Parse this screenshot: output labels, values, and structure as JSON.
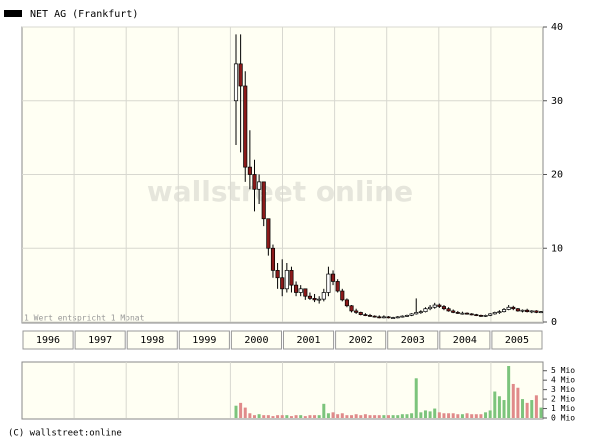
{
  "chart_data": {
    "type": "candlestick",
    "title": "NET AG (Frankfurt)",
    "note": "1 Wert entspricht 1 Monat",
    "watermark": "wallstreet online",
    "copyright": "(C) wallstreet:online",
    "x_labels": [
      "1996",
      "1997",
      "1998",
      "1999",
      "2000",
      "2001",
      "2002",
      "2003",
      "2004",
      "2005"
    ],
    "ylim": [
      0,
      40
    ],
    "yticks": [
      0,
      10,
      20,
      30,
      40
    ],
    "grid": true,
    "up_color": "#ffffff",
    "down_color": "#8b1a1a",
    "wick_color": "#000000",
    "series": [
      {
        "name": "NET AG (Frankfurt)",
        "open": [
          30,
          35,
          32,
          21,
          20,
          18,
          19,
          14,
          10,
          7,
          6,
          4.5,
          7,
          5,
          4,
          4.5,
          3.5,
          3.2,
          3,
          3.1,
          4,
          6.5,
          5.5,
          4.2,
          3,
          2.2,
          1.5,
          1.3,
          1.0,
          0.9,
          0.8,
          0.7,
          0.6,
          0.7,
          0.6,
          0.6,
          0.7,
          0.8,
          0.9,
          1.1,
          1.3,
          1.4,
          1.8,
          2.0,
          2.3,
          2.1,
          1.8,
          1.5,
          1.3,
          1.2,
          1.2,
          1.1,
          1.0,
          0.9,
          0.8,
          0.9,
          1.1,
          1.3,
          1.4,
          1.7,
          2.0,
          1.8,
          1.5,
          1.6,
          1.4,
          1.5,
          1.3
        ],
        "high": [
          39,
          39,
          34,
          26,
          22,
          20,
          19,
          14,
          10.5,
          8,
          8.5,
          8,
          7.5,
          5.5,
          5,
          4.5,
          4,
          3.8,
          3.5,
          4.5,
          7.5,
          7,
          5.8,
          4.5,
          3.2,
          2.3,
          1.8,
          1.4,
          1.2,
          1.1,
          0.9,
          0.9,
          0.9,
          0.8,
          0.7,
          0.8,
          0.9,
          1.0,
          1.2,
          3.2,
          1.6,
          2.0,
          2.3,
          2.6,
          2.5,
          2.3,
          2.0,
          1.7,
          1.5,
          1.4,
          1.3,
          1.2,
          1.1,
          1.0,
          1.0,
          1.2,
          1.4,
          1.6,
          1.9,
          2.3,
          2.2,
          1.9,
          1.7,
          1.8,
          1.6,
          1.6,
          1.5
        ],
        "low": [
          24,
          23,
          19,
          18,
          15,
          16,
          13,
          9,
          6,
          4.5,
          3.5,
          4,
          4,
          3.5,
          3.5,
          3,
          3,
          2.7,
          2.5,
          2.8,
          3.5,
          5,
          4,
          2.8,
          2,
          1.3,
          1.1,
          0.9,
          0.8,
          0.7,
          0.6,
          0.5,
          0.5,
          0.5,
          0.5,
          0.5,
          0.6,
          0.7,
          0.8,
          1.0,
          1.1,
          1.3,
          1.6,
          1.8,
          1.9,
          1.6,
          1.4,
          1.2,
          1.1,
          1.0,
          1.0,
          0.9,
          0.8,
          0.7,
          0.7,
          0.8,
          1.0,
          1.1,
          1.3,
          1.6,
          1.6,
          1.4,
          1.3,
          1.3,
          1.2,
          1.2,
          1.2
        ],
        "close": [
          35,
          32,
          21,
          20,
          18,
          19,
          14,
          10,
          7,
          6,
          4.5,
          7,
          5,
          4,
          4.5,
          3.5,
          3.2,
          3,
          3.1,
          4,
          6.5,
          5.5,
          4.2,
          3,
          2.2,
          1.5,
          1.3,
          1.0,
          0.9,
          0.8,
          0.7,
          0.6,
          0.7,
          0.6,
          0.6,
          0.7,
          0.8,
          0.9,
          1.1,
          1.3,
          1.4,
          1.8,
          2.0,
          2.3,
          2.1,
          1.8,
          1.5,
          1.3,
          1.2,
          1.2,
          1.1,
          1.0,
          0.9,
          0.8,
          0.9,
          1.1,
          1.3,
          1.4,
          1.7,
          2.0,
          1.8,
          1.5,
          1.6,
          1.4,
          1.5,
          1.3,
          1.4
        ]
      }
    ],
    "volume": {
      "ylim": [
        0,
        5.5
      ],
      "yticks": [
        {
          "value": 0,
          "label": "0 Mio"
        },
        {
          "value": 1,
          "label": "1 Mio"
        },
        {
          "value": 2,
          "label": "2 Mio"
        },
        {
          "value": 3,
          "label": "3 Mio"
        },
        {
          "value": 4,
          "label": "4 Mio"
        },
        {
          "value": 5,
          "label": "5 Mio"
        }
      ],
      "up_color": "#7cc47c",
      "down_color": "#e08a8a",
      "values": [
        1.3,
        1.6,
        1.1,
        0.5,
        0.3,
        0.4,
        0.3,
        0.3,
        0.2,
        0.3,
        0.3,
        0.3,
        0.2,
        0.3,
        0.3,
        0.2,
        0.3,
        0.3,
        0.3,
        1.5,
        0.5,
        0.6,
        0.4,
        0.5,
        0.3,
        0.3,
        0.4,
        0.3,
        0.4,
        0.3,
        0.3,
        0.3,
        0.3,
        0.3,
        0.3,
        0.3,
        0.4,
        0.4,
        0.5,
        4.2,
        0.6,
        0.8,
        0.7,
        1.0,
        0.6,
        0.5,
        0.5,
        0.5,
        0.4,
        0.4,
        0.5,
        0.4,
        0.4,
        0.4,
        0.6,
        0.8,
        2.8,
        2.3,
        1.9,
        5.5,
        3.6,
        3.2,
        2.0,
        1.6,
        1.9,
        2.4,
        1.1
      ]
    }
  }
}
